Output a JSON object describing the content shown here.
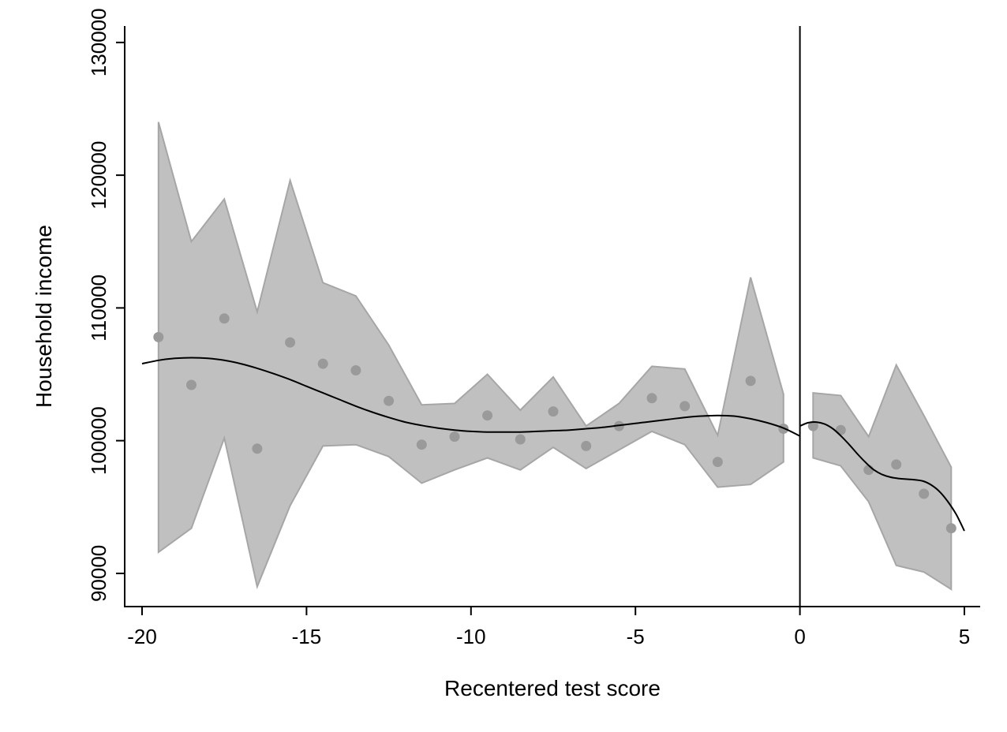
{
  "chart_data": {
    "type": "scatter",
    "title": "",
    "xlabel": "Recentered test score",
    "ylabel": "Household income",
    "xlim": [
      -20,
      5
    ],
    "ylim": [
      87500,
      131000
    ],
    "xticks": [
      -20,
      -15,
      -10,
      -5,
      0,
      5
    ],
    "xtick_labels": [
      "-20",
      "-15",
      "-10",
      "-5",
      "0",
      "5"
    ],
    "yticks": [
      90000,
      100000,
      110000,
      120000,
      130000
    ],
    "ytick_labels": [
      "90000",
      "100000",
      "110000",
      "120000",
      "130000"
    ],
    "cutoff_x": 0,
    "grid": false,
    "legend": "none",
    "colors": {
      "points": "#9a9a9a",
      "band_fill": "#c0c0c0",
      "band_edge": "#a6a6a6",
      "fit_line": "#000000",
      "axes": "#000000"
    },
    "series": [
      {
        "type": "scatter",
        "x": [
          -19.5,
          -18.5,
          -17.5,
          -16.5,
          -15.5,
          -14.5,
          -13.5,
          -12.5,
          -11.5,
          -10.5,
          -9.5,
          -8.5,
          -7.5,
          -6.5,
          -5.5,
          -4.5,
          -3.5,
          -2.5,
          -1.5,
          -0.5,
          0.4,
          1.24,
          2.09,
          2.93,
          3.77,
          4.6
        ],
        "y": [
          107800,
          104200,
          109200,
          99400,
          107400,
          105800,
          105300,
          103000,
          99700,
          100300,
          101900,
          100100,
          102200,
          99600,
          101100,
          103200,
          102600,
          98400,
          104500,
          100900,
          101100,
          100800,
          97800,
          98200,
          96000,
          93400
        ]
      },
      {
        "type": "area",
        "segment": "left",
        "x": [
          -19.5,
          -18.5,
          -17.5,
          -16.5,
          -15.5,
          -14.5,
          -13.5,
          -12.5,
          -11.5,
          -10.5,
          -9.5,
          -8.5,
          -7.5,
          -6.5,
          -5.5,
          -4.5,
          -3.5,
          -2.5,
          -1.5,
          -0.5
        ],
        "upper": [
          124000,
          115000,
          118200,
          109700,
          119600,
          111900,
          110900,
          107200,
          102700,
          102800,
          105000,
          102300,
          104800,
          101100,
          102800,
          105600,
          105400,
          100400,
          112300,
          103500
        ],
        "lower": [
          91600,
          93400,
          100200,
          89000,
          95100,
          99600,
          99700,
          98800,
          96800,
          97800,
          98700,
          97800,
          99500,
          97900,
          99300,
          100700,
          99700,
          96500,
          96700,
          98400
        ]
      },
      {
        "type": "area",
        "segment": "right",
        "x": [
          0.4,
          1.24,
          2.09,
          2.93,
          3.77,
          4.6
        ],
        "upper": [
          103600,
          103400,
          100300,
          105700,
          101900,
          98000
        ],
        "lower": [
          98700,
          98100,
          95400,
          90600,
          90100,
          88800
        ]
      },
      {
        "type": "line",
        "segment": "left",
        "x": [
          -20,
          -19.5,
          -19,
          -18.5,
          -18,
          -17.5,
          -17,
          -16.5,
          -16,
          -15.5,
          -15,
          -14.5,
          -14,
          -13.5,
          -13,
          -12.5,
          -12,
          -11.5,
          -11,
          -10.5,
          -10,
          -9.5,
          -9,
          -8.5,
          -8,
          -7.5,
          -7,
          -6.5,
          -6,
          -5.5,
          -5,
          -4.5,
          -4,
          -3.5,
          -3,
          -2.5,
          -2,
          -1.5,
          -1,
          -0.5,
          0
        ],
        "y": [
          105800,
          106050,
          106200,
          106250,
          106200,
          106050,
          105800,
          105450,
          105050,
          104600,
          104100,
          103600,
          103100,
          102600,
          102150,
          101750,
          101400,
          101150,
          100950,
          100800,
          100700,
          100650,
          100650,
          100650,
          100700,
          100750,
          100800,
          100900,
          101000,
          101150,
          101300,
          101450,
          101600,
          101750,
          101850,
          101900,
          101850,
          101650,
          101350,
          100950,
          100350
        ]
      },
      {
        "type": "line",
        "segment": "right",
        "x": [
          0,
          0.25,
          0.5,
          0.75,
          1,
          1.25,
          1.5,
          1.75,
          2,
          2.25,
          2.5,
          2.75,
          3,
          3.25,
          3.5,
          3.75,
          4,
          4.25,
          4.5,
          4.75,
          5
        ],
        "y": [
          101100,
          101350,
          101400,
          101250,
          100900,
          100350,
          99700,
          99000,
          98350,
          97800,
          97450,
          97250,
          97150,
          97100,
          97050,
          96950,
          96650,
          96150,
          95400,
          94450,
          93200
        ]
      }
    ]
  }
}
